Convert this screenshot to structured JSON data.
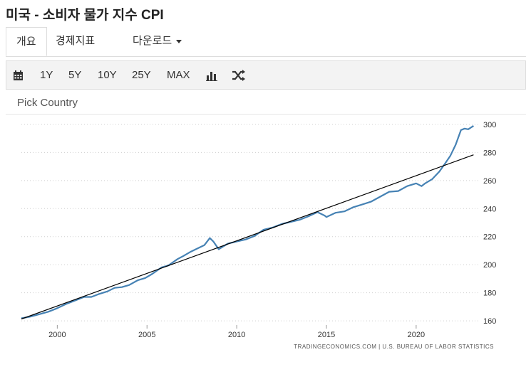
{
  "page": {
    "title": "미국 - 소비자 물가 지수 CPI"
  },
  "tabs": [
    {
      "label": "개요",
      "active": true
    },
    {
      "label": "경제지표"
    },
    {
      "label": "다운로드"
    }
  ],
  "toolbar": {
    "calendar_icon": "calendar-icon",
    "ranges": [
      "1Y",
      "5Y",
      "10Y",
      "25Y",
      "MAX"
    ],
    "bar_icon": "bar-chart-icon",
    "shuffle_icon": "shuffle-icon"
  },
  "picker": {
    "label": "Pick Country"
  },
  "chart_data": {
    "type": "line",
    "x_ticks": [
      "2000",
      "2005",
      "2010",
      "2015",
      "2020"
    ],
    "y_ticks": [
      "160",
      "180",
      "200",
      "220",
      "240",
      "260",
      "280",
      "300"
    ],
    "xlim": [
      1998.0,
      2023.5
    ],
    "ylim": [
      157,
      303
    ],
    "grid": "horizontal dotted",
    "source": "TRADINGECONOMICS.COM  |  U.S. BUREAU OF LABOR STATISTICS",
    "series": [
      {
        "color": "#4682b4",
        "x": [
          1998.0,
          1998.5,
          1999.0,
          1999.5,
          2000.0,
          2000.5,
          2001.0,
          2001.5,
          2001.9,
          2002.3,
          2002.8,
          2003.2,
          2003.6,
          2004.0,
          2004.5,
          2004.9,
          2005.3,
          2005.8,
          2006.2,
          2006.7,
          2007.0,
          2007.4,
          2007.8,
          2008.2,
          2008.5,
          2008.7,
          2009.0,
          2009.5,
          2010.0,
          2010.5,
          2011.0,
          2011.5,
          2012.0,
          2012.5,
          2013.0,
          2013.5,
          2014.0,
          2014.5,
          2014.9,
          2015.0,
          2015.5,
          2016.0,
          2016.5,
          2017.0,
          2017.5,
          2018.0,
          2018.5,
          2019.0,
          2019.5,
          2020.0,
          2020.3,
          2020.5,
          2020.9,
          2021.3,
          2021.6,
          2021.9,
          2022.2,
          2022.5,
          2022.7,
          2022.9,
          2023.2
        ],
        "values": [
          161.8,
          163.0,
          164.7,
          166.5,
          169.0,
          172.0,
          174.5,
          177.0,
          177.0,
          179.0,
          181.0,
          183.5,
          184.0,
          185.5,
          189.0,
          190.5,
          193.5,
          198.0,
          199.5,
          204.0,
          206.0,
          209.0,
          211.5,
          214.0,
          219.0,
          216.5,
          211.0,
          215.0,
          216.5,
          218.0,
          220.5,
          225.0,
          226.5,
          229.0,
          230.5,
          232.0,
          234.5,
          237.5,
          235.0,
          234.0,
          237.0,
          238.0,
          241.0,
          243.0,
          245.0,
          248.5,
          252.0,
          252.5,
          256.0,
          258.0,
          256.0,
          258.0,
          261.0,
          266.5,
          272.0,
          277.5,
          285.5,
          296.0,
          297.0,
          296.5,
          299.0
        ]
      },
      {
        "color": "#000000",
        "x": [
          1998.0,
          2023.2
        ],
        "values": [
          161.3,
          278.3
        ]
      }
    ]
  }
}
